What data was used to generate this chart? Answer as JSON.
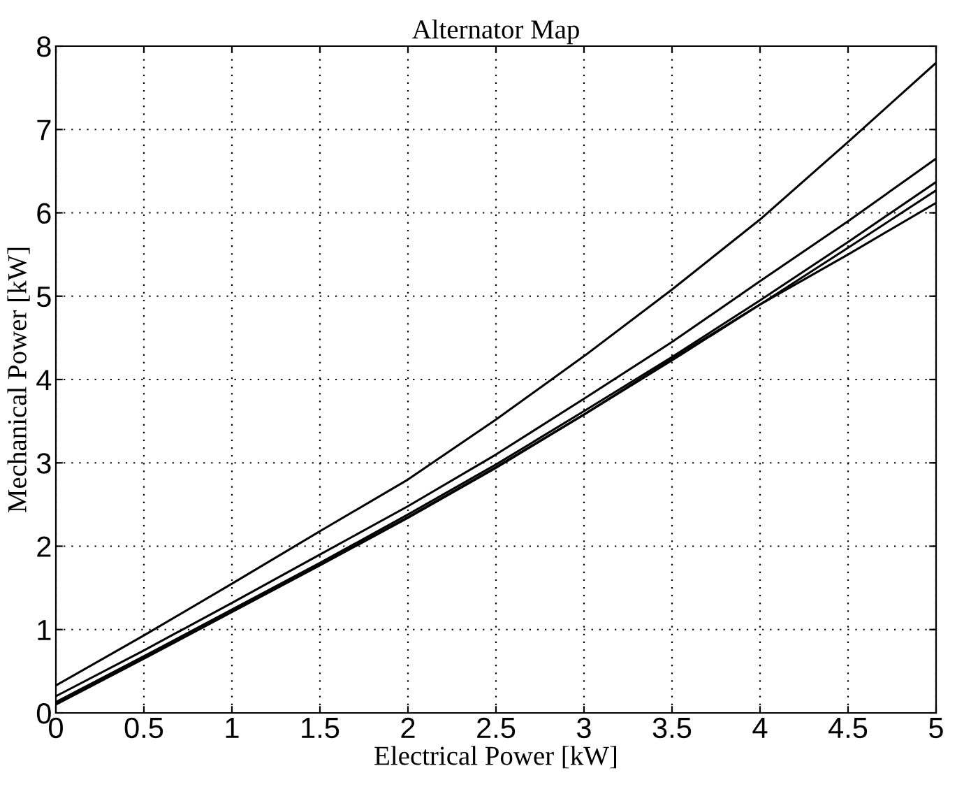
{
  "chart_data": {
    "type": "line",
    "title": "Alternator Map",
    "xlabel": "Electrical Power [kW]",
    "ylabel": "Mechanical Power [kW]",
    "x": [
      0,
      0.5,
      1,
      1.5,
      2,
      2.5,
      3,
      3.5,
      4,
      4.5,
      5
    ],
    "series": [
      {
        "color": "#000000",
        "values": [
          0.33,
          0.93,
          1.55,
          2.18,
          2.8,
          3.52,
          4.28,
          5.08,
          5.92,
          6.85,
          7.8
        ]
      },
      {
        "color": "#000000",
        "values": [
          0.2,
          0.75,
          1.32,
          1.9,
          2.48,
          3.1,
          3.77,
          4.45,
          5.18,
          5.9,
          6.65
        ]
      },
      {
        "color": "#000000",
        "values": [
          0.13,
          0.68,
          1.24,
          1.8,
          2.38,
          2.98,
          3.62,
          4.27,
          4.95,
          5.65,
          6.37
        ]
      },
      {
        "color": "#000000",
        "values": [
          0.11,
          0.66,
          1.22,
          1.78,
          2.35,
          2.95,
          3.58,
          4.23,
          4.9,
          5.58,
          6.27
        ]
      },
      {
        "color": "#000000",
        "values": [
          0.1,
          0.65,
          1.21,
          1.77,
          2.34,
          2.94,
          3.58,
          4.25,
          4.9,
          5.5,
          6.12
        ]
      }
    ],
    "xlim": [
      0,
      5
    ],
    "xticks": [
      0,
      0.5,
      1,
      1.5,
      2,
      2.5,
      3,
      3.5,
      4,
      4.5,
      5
    ],
    "ylim": [
      0,
      8
    ],
    "yticks": [
      0,
      1,
      2,
      3,
      4,
      5,
      6,
      7,
      8
    ],
    "grid": true,
    "line_style": "solid",
    "marker": "none"
  }
}
